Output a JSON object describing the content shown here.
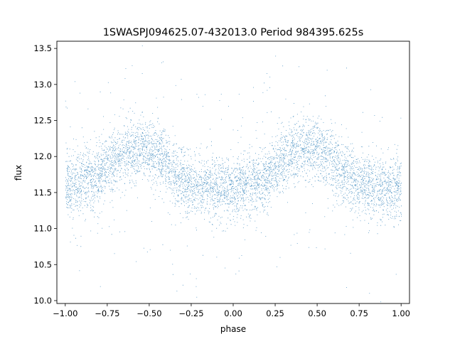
{
  "chart_data": {
    "type": "scatter",
    "title": "1SWASPJ094625.07-432013.0 Period 984395.625s",
    "xlabel": "phase",
    "ylabel": "flux",
    "xlim": [
      -1.05,
      1.05
    ],
    "ylim": [
      9.96,
      13.6
    ],
    "xticks": [
      -1.0,
      -0.75,
      -0.5,
      -0.25,
      0.0,
      0.25,
      0.5,
      0.75,
      1.0
    ],
    "xtick_labels": [
      "−1.00",
      "−0.75",
      "−0.50",
      "−0.25",
      "0.00",
      "0.25",
      "0.50",
      "0.75",
      "1.00"
    ],
    "yticks": [
      10.0,
      10.5,
      11.0,
      11.5,
      12.0,
      12.5,
      13.0,
      13.5
    ],
    "ytick_labels": [
      "10.0",
      "10.5",
      "11.0",
      "11.5",
      "12.0",
      "12.5",
      "13.0",
      "13.5"
    ],
    "marker_color": "#1f77b4",
    "grid": false,
    "legend": "none",
    "series": [
      {
        "x": [
          -1.0,
          -0.95,
          -0.9,
          -0.85,
          -0.8,
          -0.75,
          -0.7,
          -0.65,
          -0.6,
          -0.55,
          -0.5,
          -0.45,
          -0.4,
          -0.35,
          -0.3,
          -0.25,
          -0.2,
          -0.15,
          -0.1,
          -0.05,
          0.0,
          0.05,
          0.1,
          0.15,
          0.2,
          0.25,
          0.3,
          0.35,
          0.4,
          0.45,
          0.5,
          0.55,
          0.6,
          0.65,
          0.7,
          0.75,
          0.8,
          0.85,
          0.9,
          0.95,
          1.0
        ],
        "y": [
          11.6,
          11.62,
          11.65,
          11.68,
          11.75,
          11.88,
          12.0,
          12.08,
          12.1,
          12.12,
          12.08,
          12.0,
          11.9,
          11.75,
          11.68,
          11.62,
          11.58,
          11.56,
          11.55,
          11.56,
          11.58,
          11.6,
          11.62,
          11.65,
          11.7,
          11.85,
          11.98,
          12.05,
          12.1,
          12.12,
          12.1,
          12.02,
          11.9,
          11.78,
          11.7,
          11.65,
          11.6,
          11.58,
          11.57,
          11.58,
          11.6
        ],
        "scatter_sd": 0.22
      }
    ]
  }
}
